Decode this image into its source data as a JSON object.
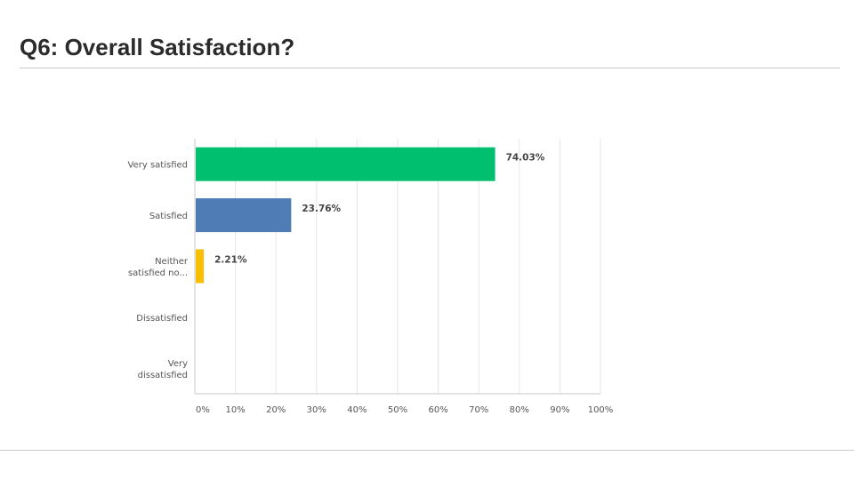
{
  "slide": {
    "title": "Q6: Overall Satisfaction?"
  },
  "chart_data": {
    "type": "bar",
    "orientation": "horizontal",
    "categories": [
      [
        "Very satisfied"
      ],
      [
        "Satisfied"
      ],
      [
        "Neither",
        "satisfied no..."
      ],
      [
        "Dissatisfied"
      ],
      [
        "Very",
        "dissatisfied"
      ]
    ],
    "values": [
      74.03,
      23.76,
      2.21,
      0,
      0
    ],
    "value_labels": [
      "74.03%",
      "23.76%",
      "2.21%",
      "",
      ""
    ],
    "colors": [
      "#00bf6f",
      "#507cb6",
      "#f9be00",
      "#6bc8cd",
      "#ff8b4f"
    ],
    "xlim": [
      0,
      100
    ],
    "xticks": [
      "0%",
      "10%",
      "20%",
      "30%",
      "40%",
      "50%",
      "60%",
      "70%",
      "80%",
      "90%",
      "100%"
    ],
    "grid": true,
    "legend": "none"
  }
}
